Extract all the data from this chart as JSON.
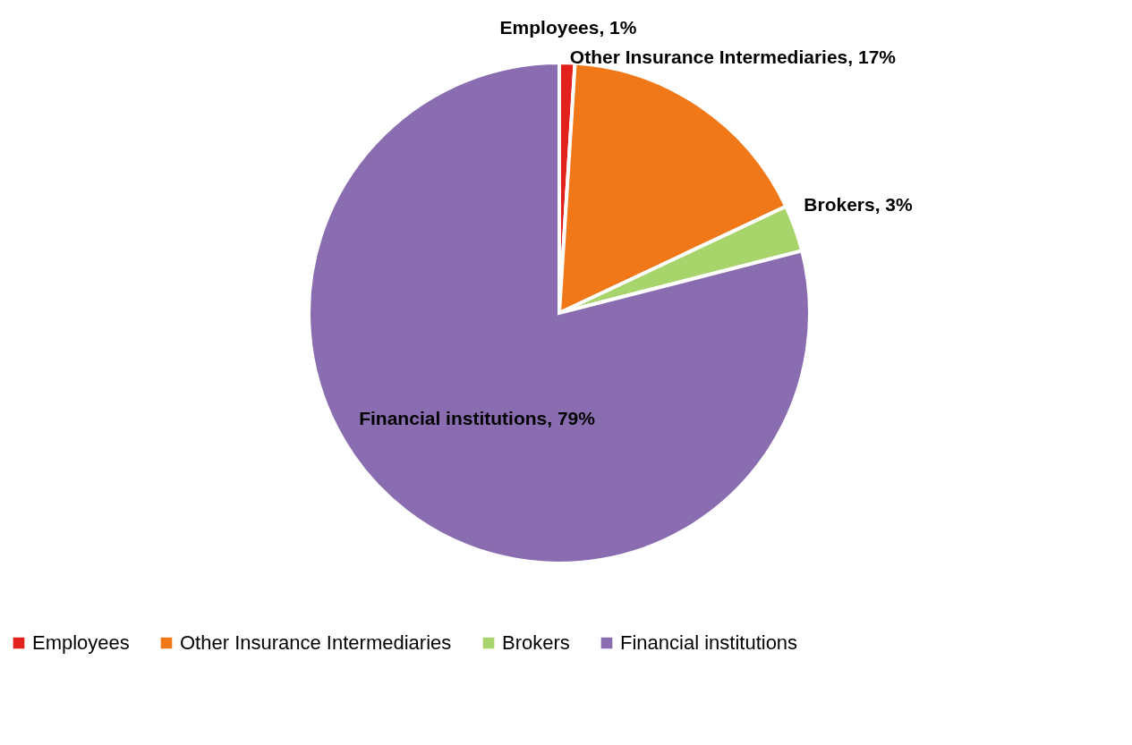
{
  "chart_data": {
    "type": "pie",
    "categories": [
      "Employees",
      "Other Insurance Intermediaries",
      "Brokers",
      "Financial institutions"
    ],
    "values": [
      1,
      17,
      3,
      79
    ],
    "colors": [
      "#e2201c",
      "#f07818",
      "#a8d46c",
      "#8a6db0"
    ],
    "value_labels": [
      "Employees, 1%",
      "Other Insurance Intermediaries, 17%",
      "Brokers, 3%",
      "Financial institutions, 79%"
    ],
    "legend": "bottom"
  }
}
